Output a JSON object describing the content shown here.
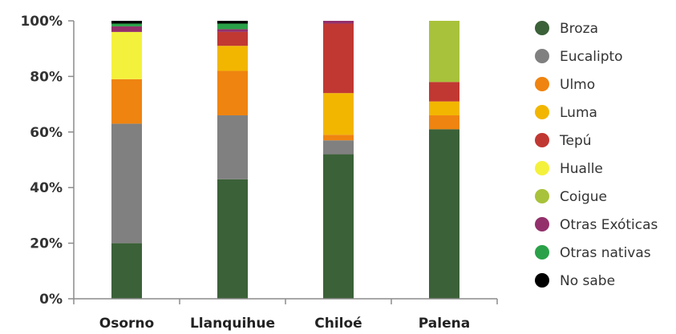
{
  "chart_data": {
    "type": "bar",
    "stacked": true,
    "categories": [
      "Osorno",
      "Llanquihue",
      "Chiloé",
      "Palena"
    ],
    "ylim": [
      0,
      100
    ],
    "yticks": [
      "0%",
      "20%",
      "40%",
      "60%",
      "80%",
      "100%"
    ],
    "grid": false,
    "legend_position": "right",
    "series": [
      {
        "name": "Broza",
        "color": "#3b6138",
        "values": [
          20,
          43,
          52,
          61
        ]
      },
      {
        "name": "Eucalipto",
        "color": "#808080",
        "values": [
          43,
          23,
          5,
          0
        ]
      },
      {
        "name": "Ulmo",
        "color": "#ef8410",
        "values": [
          16,
          16,
          2,
          5
        ]
      },
      {
        "name": "Luma",
        "color": "#f2b600",
        "values": [
          0,
          9,
          15,
          5
        ]
      },
      {
        "name": "Tepú",
        "color": "#c13832",
        "values": [
          0,
          5,
          25,
          7
        ]
      },
      {
        "name": "Hualle",
        "color": "#f4f13d",
        "values": [
          17,
          0,
          0,
          0
        ]
      },
      {
        "name": "Coigue",
        "color": "#a8c23b",
        "values": [
          0,
          0,
          0,
          22
        ]
      },
      {
        "name": "Otras Exóticas",
        "color": "#93306b",
        "values": [
          2,
          1,
          1,
          0
        ]
      },
      {
        "name": "Otras nativas",
        "color": "#2aa148",
        "values": [
          1,
          2,
          0,
          0
        ]
      },
      {
        "name": "No sabe",
        "color": "#000000",
        "values": [
          1,
          1,
          0,
          0
        ]
      }
    ]
  }
}
